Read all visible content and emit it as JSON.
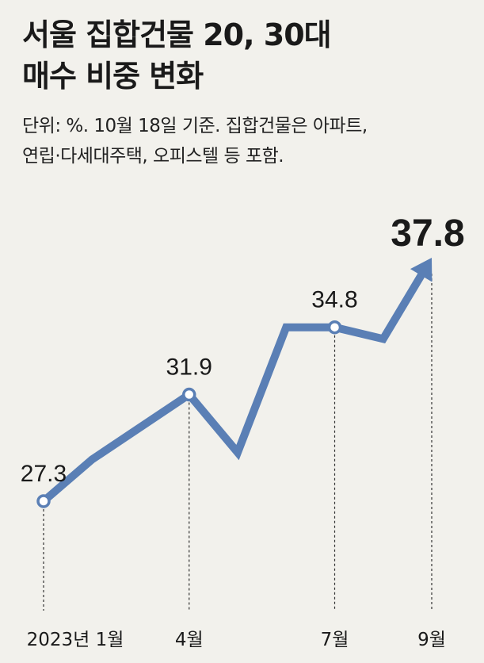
{
  "header": {
    "title_line1": "서울 집합건물 20, 30대",
    "title_line2": "매수 비중 변화",
    "subtitle_line1": "단위: %. 10월 18일 기준. 집합건물은 아파트,",
    "subtitle_line2": "연립·다세대주택, 오피스텔 등 포함."
  },
  "chart_data": {
    "type": "line",
    "title": "서울 집합건물 20, 30대 매수 비중 변화",
    "unit": "%",
    "x": [
      "2023-01",
      "2023-02",
      "2023-03",
      "2023-04",
      "2023-05",
      "2023-06",
      "2023-07",
      "2023-08",
      "2023-09"
    ],
    "tick_labels": [
      {
        "x": "2023-01",
        "label": "2023년 1월"
      },
      {
        "x": "2023-04",
        "label": "4월"
      },
      {
        "x": "2023-07",
        "label": "7월"
      },
      {
        "x": "2023-09",
        "label": "9월"
      }
    ],
    "series": [
      {
        "values": [
          27.3,
          29.1,
          30.5,
          31.9,
          29.4,
          34.8,
          34.8,
          34.3,
          37.8
        ]
      }
    ],
    "data_labels": [
      {
        "x": "2023-01",
        "text": "27.3"
      },
      {
        "x": "2023-04",
        "text": "31.9"
      },
      {
        "x": "2023-07",
        "text": "34.8"
      },
      {
        "x": "2023-09",
        "text": "37.8"
      }
    ],
    "highlight_last": true,
    "line_color": "#5a7fb5",
    "marker_fill": "#ffffff",
    "grid": false
  }
}
